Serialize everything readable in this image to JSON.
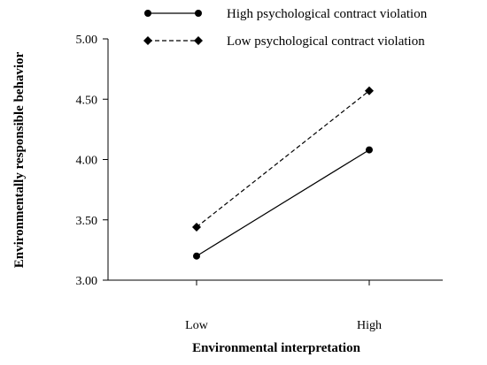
{
  "chart_data": {
    "type": "line",
    "title": "",
    "xlabel": "Environmental interpretation",
    "ylabel": "Environmentally responsible behavior",
    "categories": [
      "Low",
      "High"
    ],
    "ylim": [
      3.0,
      5.0
    ],
    "yticks": [
      "3.00",
      "3.50",
      "4.00",
      "4.50",
      "5.00"
    ],
    "grid": false,
    "legend_position": "top",
    "series": [
      {
        "name": "High psychological contract violation",
        "values": [
          3.2,
          4.08
        ],
        "marker": "circle",
        "line_style": "solid",
        "color": "#000000"
      },
      {
        "name": "Low psychological contract violation",
        "values": [
          3.44,
          4.57
        ],
        "marker": "diamond",
        "line_style": "dashed",
        "color": "#000000"
      }
    ]
  }
}
